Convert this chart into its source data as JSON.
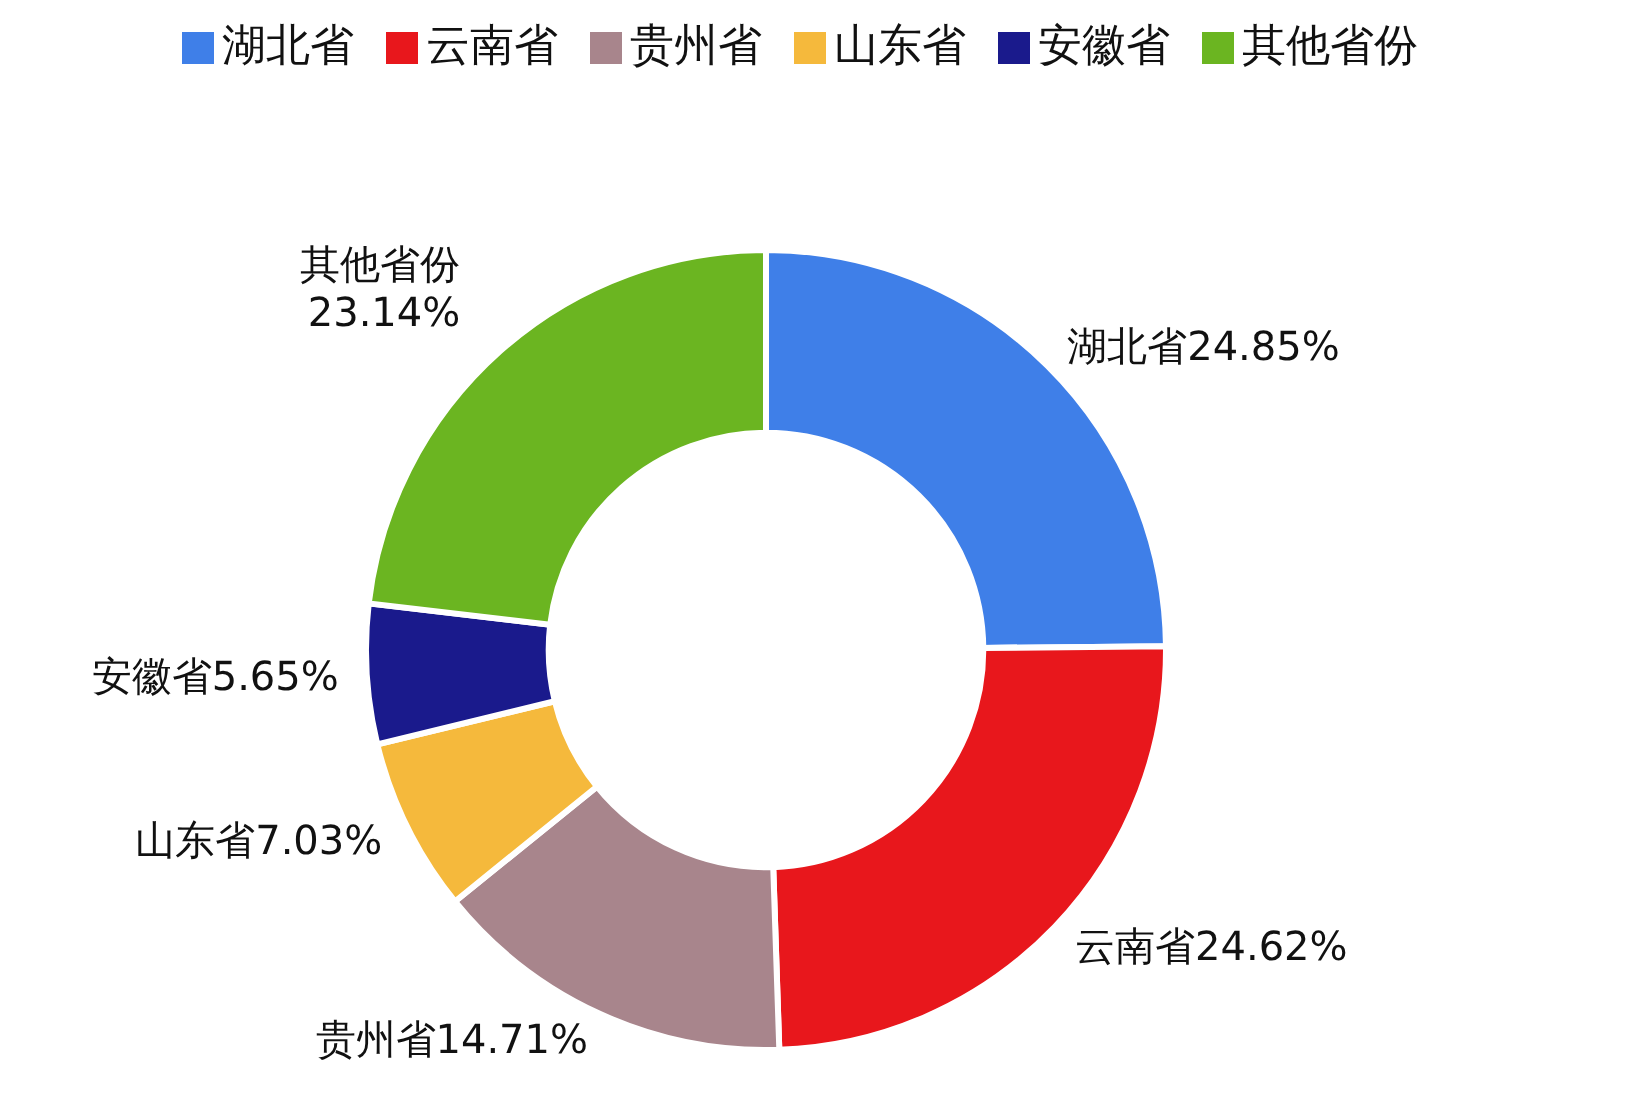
{
  "chart_data": {
    "type": "donut",
    "categories": [
      "湖北省",
      "云南省",
      "贵州省",
      "山东省",
      "安徽省",
      "其他省份"
    ],
    "values": [
      24.85,
      24.62,
      14.71,
      7.03,
      5.65,
      23.14
    ],
    "value_labels": [
      "24.85%",
      "24.62%",
      "14.71%",
      "7.03%",
      "5.65%",
      "23.14%"
    ],
    "colors": [
      "#3f7fe8",
      "#e8171c",
      "#a8858c",
      "#f5b93c",
      "#1a1a8c",
      "#6bb521"
    ],
    "legend": "top"
  }
}
